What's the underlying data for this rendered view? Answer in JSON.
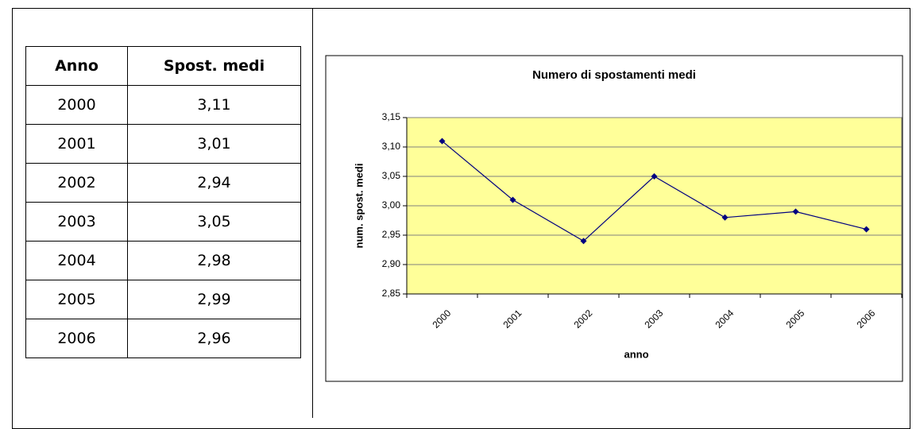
{
  "table": {
    "header": [
      "Anno",
      "Spost. medi"
    ],
    "rows": [
      [
        "2000",
        "3,11"
      ],
      [
        "2001",
        "3,01"
      ],
      [
        "2002",
        "2,94"
      ],
      [
        "2003",
        "3,05"
      ],
      [
        "2004",
        "2,98"
      ],
      [
        "2005",
        "2,99"
      ],
      [
        "2006",
        "2,96"
      ]
    ]
  },
  "chart_data": {
    "type": "line",
    "title": "Numero di spostamenti medi",
    "x_label": "anno",
    "y_label": "num. spost. medi",
    "categories": [
      "2000",
      "2001",
      "2002",
      "2003",
      "2004",
      "2005",
      "2006"
    ],
    "series": [
      {
        "name": "Spost. medi",
        "color": "#000080",
        "values": [
          3.11,
          3.01,
          2.94,
          3.05,
          2.98,
          2.99,
          2.96
        ]
      }
    ],
    "ylim": [
      2.85,
      3.15
    ],
    "yticks": [
      {
        "value": 2.85,
        "label": "2,85"
      },
      {
        "value": 2.9,
        "label": "2,90"
      },
      {
        "value": 2.95,
        "label": "2,95"
      },
      {
        "value": 3.0,
        "label": "3,00"
      },
      {
        "value": 3.05,
        "label": "3,05"
      },
      {
        "value": 3.1,
        "label": "3,10"
      },
      {
        "value": 3.15,
        "label": "3,15"
      }
    ],
    "grid": true,
    "plot_background": "#ffff99"
  }
}
